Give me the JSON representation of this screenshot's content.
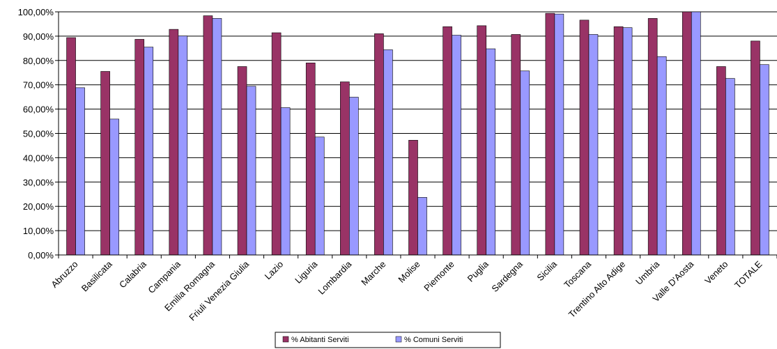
{
  "chart_data": {
    "type": "bar",
    "title": "",
    "xlabel": "",
    "ylabel": "",
    "ylim": [
      0,
      100
    ],
    "ytick_step": 10,
    "ytick_labels": [
      "0,00%",
      "10,00%",
      "20,00%",
      "30,00%",
      "40,00%",
      "50,00%",
      "60,00%",
      "70,00%",
      "80,00%",
      "90,00%",
      "100,00%"
    ],
    "grid": "horizontal",
    "legend_position": "bottom",
    "categories": [
      "Abruzzo",
      "Basilicata",
      "Calabria",
      "Campania",
      "Emilia Romagna",
      "Friuli Venezia Giulia",
      "Lazio",
      "Liguria",
      "Lombardia",
      "Marche",
      "Molise",
      "Piemonte",
      "Puglia",
      "Sardegna",
      "Sicilia",
      "Toscana",
      "Trentino Alto Adige",
      "Umbria",
      "Valle D'Aosta",
      "Veneto",
      "TOTALE"
    ],
    "series": [
      {
        "name": "% Abitanti Serviti",
        "color": "#993366",
        "values": [
          89.4,
          75.5,
          88.7,
          92.8,
          98.4,
          77.5,
          91.4,
          79.0,
          71.2,
          91.0,
          47.2,
          93.9,
          94.3,
          90.7,
          99.4,
          96.6,
          93.9,
          97.3,
          100.0,
          77.5,
          88.0
        ]
      },
      {
        "name": "% Comuni Serviti",
        "color": "#9999ff",
        "values": [
          68.8,
          55.9,
          85.5,
          90.1,
          97.3,
          69.4,
          60.6,
          48.5,
          64.9,
          84.4,
          23.7,
          90.4,
          84.8,
          75.7,
          99.1,
          90.7,
          93.5,
          81.6,
          100.0,
          72.6,
          78.3
        ]
      }
    ]
  }
}
